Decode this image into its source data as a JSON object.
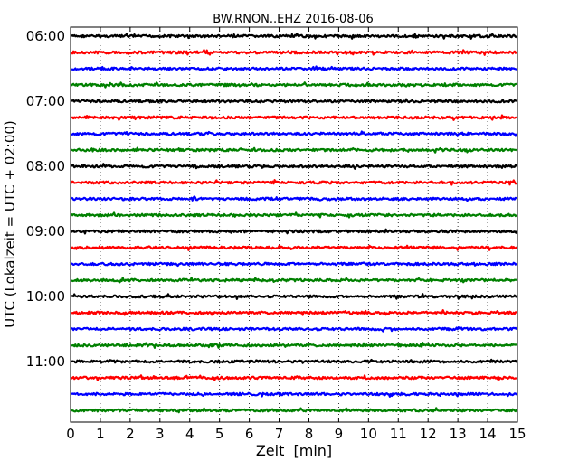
{
  "chart_data": {
    "type": "line",
    "title": "BW.RNON..EHZ 2016-08-06",
    "xlabel": "Zeit  [min]",
    "ylabel": "UTC (Lokalzeit = UTC + 02:00)",
    "xlim": [
      0,
      15
    ],
    "x_ticks": [
      "0",
      "1",
      "2",
      "3",
      "4",
      "5",
      "6",
      "7",
      "8",
      "9",
      "10",
      "11",
      "12",
      "13",
      "14",
      "15"
    ],
    "y_ticks": [
      "06:00",
      "07:00",
      "08:00",
      "09:00",
      "10:00",
      "11:00"
    ],
    "grid": "vertical dotted",
    "trace_colors": [
      "#000000",
      "#ff0000",
      "#0000ff",
      "#008000"
    ],
    "traces": [
      {
        "start": "06:00",
        "color": "#000000"
      },
      {
        "start": "06:15",
        "color": "#ff0000"
      },
      {
        "start": "06:30",
        "color": "#0000ff"
      },
      {
        "start": "06:45",
        "color": "#008000"
      },
      {
        "start": "07:00",
        "color": "#000000"
      },
      {
        "start": "07:15",
        "color": "#ff0000"
      },
      {
        "start": "07:30",
        "color": "#0000ff"
      },
      {
        "start": "07:45",
        "color": "#008000"
      },
      {
        "start": "08:00",
        "color": "#000000"
      },
      {
        "start": "08:15",
        "color": "#ff0000"
      },
      {
        "start": "08:30",
        "color": "#0000ff"
      },
      {
        "start": "08:45",
        "color": "#008000"
      },
      {
        "start": "09:00",
        "color": "#000000"
      },
      {
        "start": "09:15",
        "color": "#ff0000"
      },
      {
        "start": "09:30",
        "color": "#0000ff"
      },
      {
        "start": "09:45",
        "color": "#008000"
      },
      {
        "start": "10:00",
        "color": "#000000"
      },
      {
        "start": "10:15",
        "color": "#ff0000"
      },
      {
        "start": "10:30",
        "color": "#0000ff"
      },
      {
        "start": "10:45",
        "color": "#008000"
      },
      {
        "start": "11:00",
        "color": "#000000"
      },
      {
        "start": "11:15",
        "color": "#ff0000"
      },
      {
        "start": "11:30",
        "color": "#0000ff"
      },
      {
        "start": "11:45",
        "color": "#008000"
      }
    ]
  }
}
